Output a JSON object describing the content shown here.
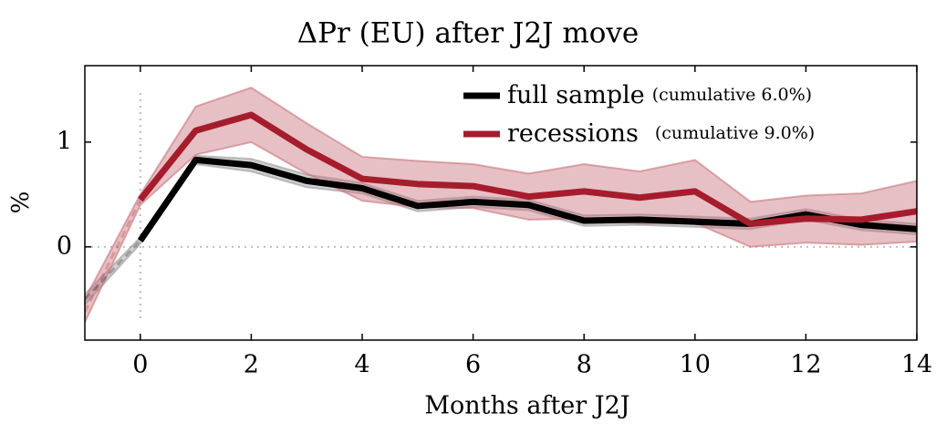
{
  "chart_data": {
    "type": "line",
    "title": "ΔPr (EU) after J2J move",
    "xlabel": "Months after J2J",
    "ylabel": "%",
    "x": [
      -1,
      0,
      1,
      2,
      3,
      4,
      5,
      6,
      7,
      8,
      9,
      10,
      11,
      12,
      13,
      14
    ],
    "series": [
      {
        "name": "full sample",
        "legend_note": "(cumulative 6.0%)",
        "color": "#000000",
        "band_color": "#9a9a9a",
        "values": [
          -0.5,
          0.06,
          0.83,
          0.78,
          0.63,
          0.56,
          0.39,
          0.43,
          0.4,
          0.25,
          0.26,
          0.24,
          0.22,
          0.31,
          0.21,
          0.17
        ],
        "upper": [
          -0.45,
          0.09,
          0.87,
          0.84,
          0.69,
          0.61,
          0.44,
          0.48,
          0.45,
          0.3,
          0.31,
          0.29,
          0.27,
          0.36,
          0.26,
          0.22
        ],
        "lower": [
          -0.55,
          0.03,
          0.79,
          0.72,
          0.57,
          0.51,
          0.34,
          0.38,
          0.35,
          0.2,
          0.21,
          0.19,
          0.17,
          0.26,
          0.16,
          0.12
        ]
      },
      {
        "name": "recessions",
        "legend_note": "(cumulative 9.0%)",
        "color": "#a51d2d",
        "band_color": "#c8737c",
        "values": [
          -0.62,
          0.45,
          1.11,
          1.26,
          0.93,
          0.65,
          0.6,
          0.58,
          0.48,
          0.53,
          0.47,
          0.53,
          0.22,
          0.27,
          0.26,
          0.34
        ],
        "upper": [
          -0.5,
          0.5,
          1.34,
          1.52,
          1.18,
          0.86,
          0.82,
          0.79,
          0.7,
          0.79,
          0.72,
          0.83,
          0.43,
          0.49,
          0.51,
          0.63
        ],
        "lower": [
          -0.72,
          0.4,
          0.88,
          1.0,
          0.7,
          0.44,
          0.38,
          0.37,
          0.26,
          0.27,
          0.22,
          0.23,
          0.0,
          0.04,
          0.02,
          0.05
        ]
      }
    ],
    "xlim": [
      -1,
      14
    ],
    "xticks": [
      0,
      2,
      4,
      6,
      8,
      10,
      12,
      14
    ],
    "ylim": [
      -0.89,
      1.73
    ],
    "yticks": [
      0,
      1
    ],
    "vline": 0,
    "hline": 0,
    "legend": "upper right"
  }
}
